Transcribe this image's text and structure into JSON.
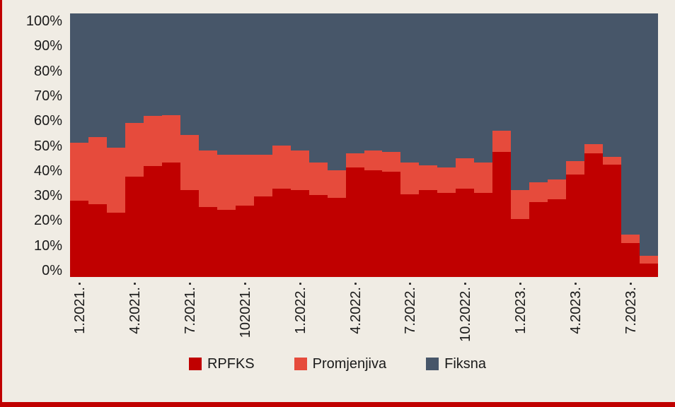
{
  "figure": {
    "background": "#f0ece4",
    "accent_red": "#c00000",
    "text_color": "#1a1a1a"
  },
  "chart_data": {
    "type": "bar",
    "subtype": "stacked-100-percent",
    "stacked": true,
    "n_bars": 32,
    "x_range_note": "monthly bars from 1.2021 to 8.2023",
    "x_tick_every": 3,
    "x_tick_labels": [
      "1.2021.",
      "4.2021.",
      "7.2021.",
      "102021.",
      "1.2022.",
      "4.2022.",
      "7.2022.",
      "10.2022.",
      "1.2023.",
      "4.2023.",
      "7.2023."
    ],
    "y_tick_labels": [
      "100%",
      "90%",
      "80%",
      "70%",
      "60%",
      "50%",
      "40%",
      "30%",
      "20%",
      "10%",
      "0%"
    ],
    "ylim": [
      0,
      100
    ],
    "grid": false,
    "legend_position": "bottom",
    "series": [
      {
        "name": "RPFKS",
        "color": "#c00000",
        "values": [
          29,
          27.5,
          24.5,
          38,
          42,
          43.5,
          33,
          26.5,
          25.5,
          27,
          30.5,
          33.5,
          33,
          31,
          30,
          41.5,
          40.5,
          40,
          31.5,
          33,
          32,
          33.5,
          32,
          47.5,
          22,
          28.5,
          29.5,
          39,
          47,
          42.5,
          13,
          5
        ]
      },
      {
        "name": "Promjenjiva",
        "color": "#e64b3c",
        "values": [
          22,
          25.5,
          24.5,
          20.5,
          19,
          18,
          21,
          21.5,
          21,
          19.5,
          16,
          16.5,
          15,
          12.5,
          10.5,
          5.5,
          7.5,
          7.5,
          12,
          9.5,
          9.5,
          11.5,
          11.5,
          8,
          11,
          7.5,
          7.5,
          5,
          3.5,
          3,
          3,
          3
        ]
      },
      {
        "name": "Fiksna",
        "color": "#475669",
        "values": [
          49,
          47,
          51,
          41.5,
          39,
          38.5,
          46,
          52,
          53.5,
          53.5,
          53.5,
          50,
          52,
          56.5,
          59.5,
          53,
          52,
          52.5,
          56.5,
          57.5,
          58.5,
          55,
          56.5,
          44.5,
          67,
          64,
          63,
          56,
          49.5,
          54.5,
          84,
          92
        ]
      }
    ],
    "legend_labels": [
      "RPFKS",
      "Promjenjiva",
      "Fiksna"
    ]
  }
}
